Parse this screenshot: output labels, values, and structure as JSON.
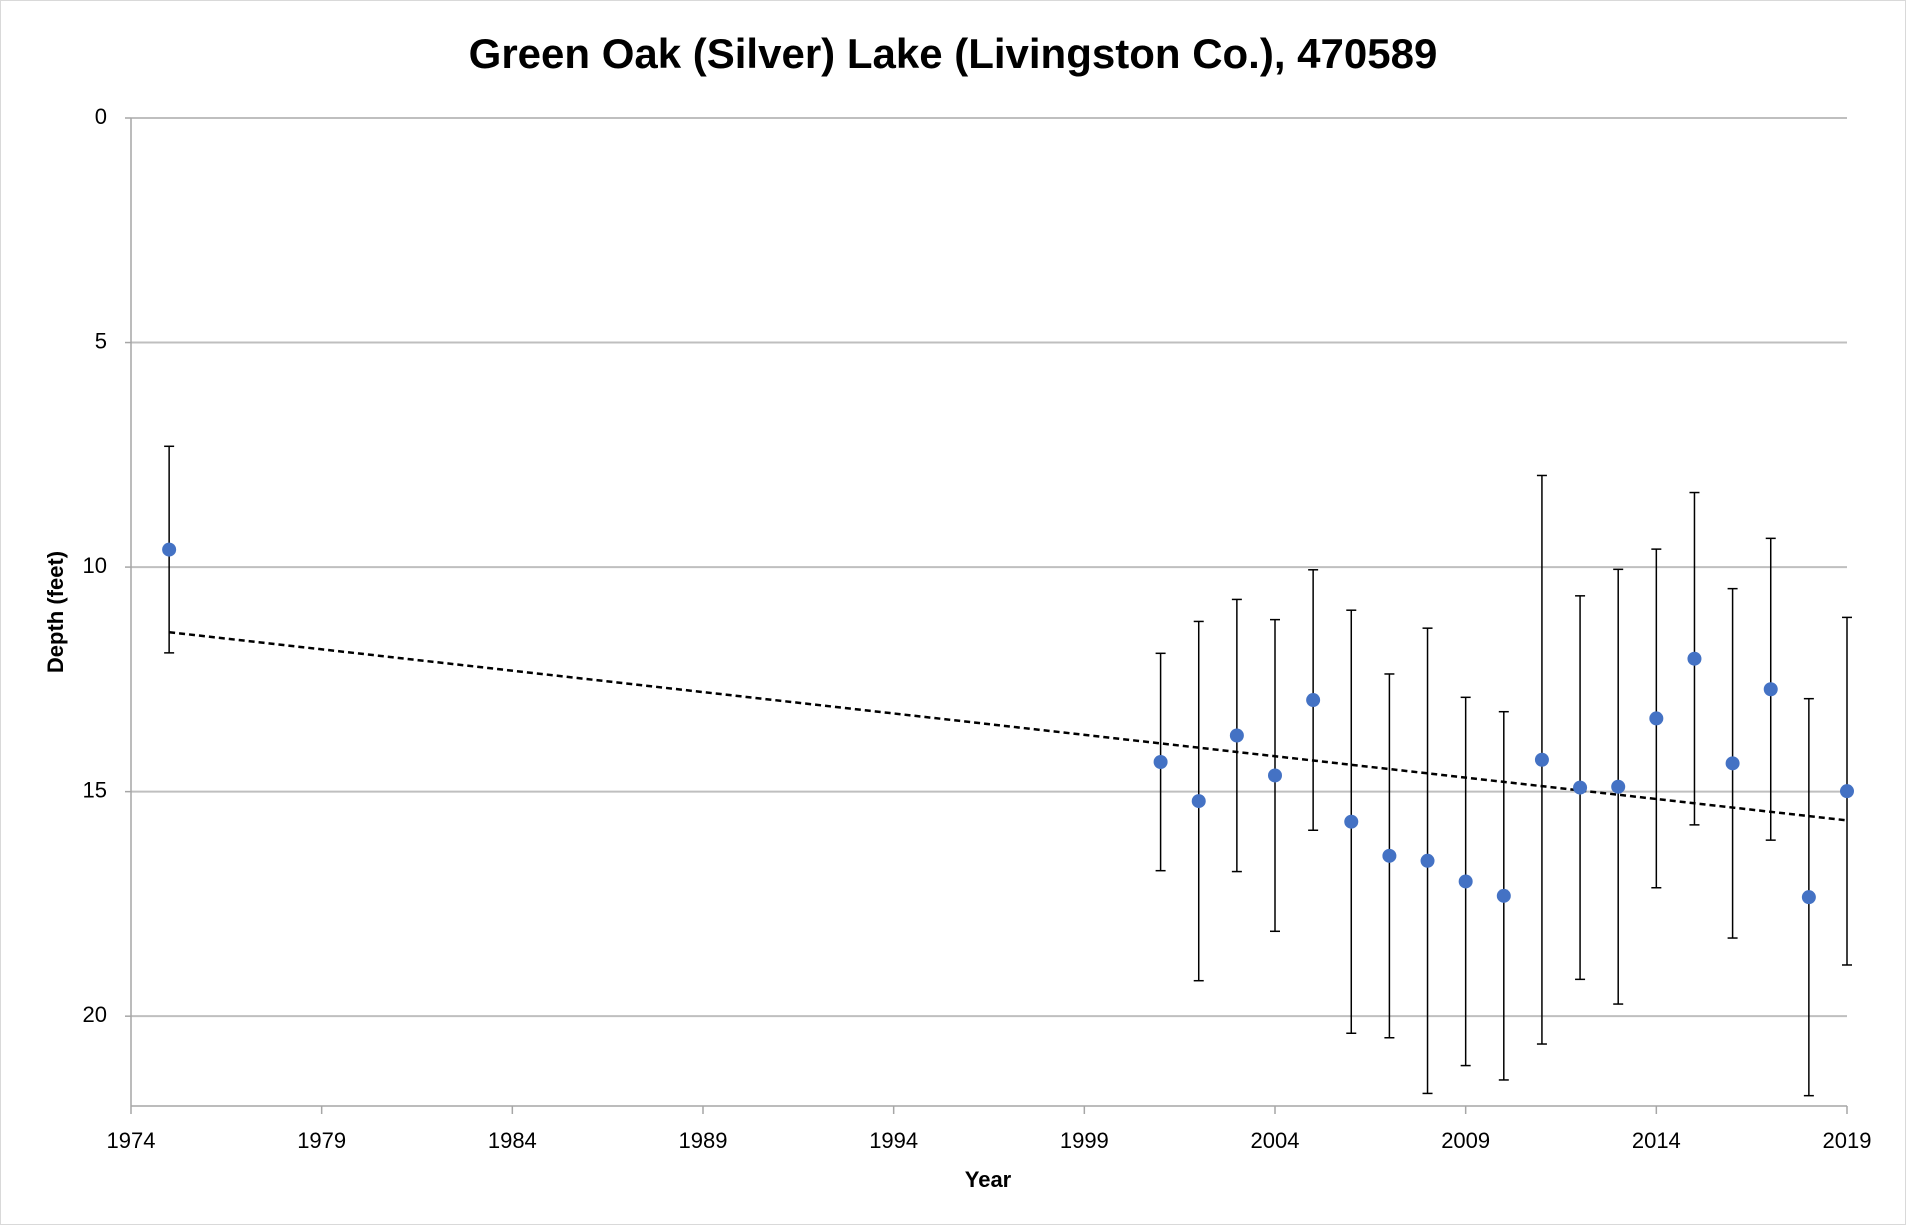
{
  "chart_data": {
    "type": "scatter",
    "title": "Green Oak (Silver) Lake (Livingston Co.), 470589",
    "x_label": "Year",
    "y_label": "Depth (feet)",
    "x": [
      1975,
      2001,
      2002,
      2003,
      2004,
      2005,
      2006,
      2007,
      2008,
      2009,
      2010,
      2011,
      2012,
      2013,
      2014,
      2015,
      2016,
      2017,
      2018,
      2019
    ],
    "values": [
      9.61,
      14.34,
      15.21,
      13.75,
      14.64,
      12.96,
      15.67,
      16.43,
      16.54,
      17.0,
      17.32,
      14.29,
      14.91,
      14.89,
      13.37,
      12.04,
      14.37,
      12.72,
      17.35,
      14.99
    ],
    "errors": [
      2.3,
      2.42,
      4.0,
      3.03,
      3.47,
      2.9,
      4.71,
      4.05,
      5.18,
      4.1,
      4.1,
      6.33,
      4.27,
      4.84,
      3.77,
      3.7,
      3.89,
      3.36,
      4.42,
      3.87
    ],
    "color": "#4472c4",
    "trendline": {
      "x": [
        1975,
        2019
      ],
      "values": [
        11.45,
        15.64
      ],
      "color": "#000000"
    },
    "xlim": [
      1974,
      2019
    ],
    "xticks": [
      1974,
      1979,
      1984,
      1989,
      1994,
      1999,
      2004,
      2009,
      2014,
      2019
    ],
    "ylim": [
      0,
      22
    ],
    "yticks": [
      0,
      5,
      10,
      15,
      20
    ],
    "y_inverted": true,
    "grid": true
  }
}
